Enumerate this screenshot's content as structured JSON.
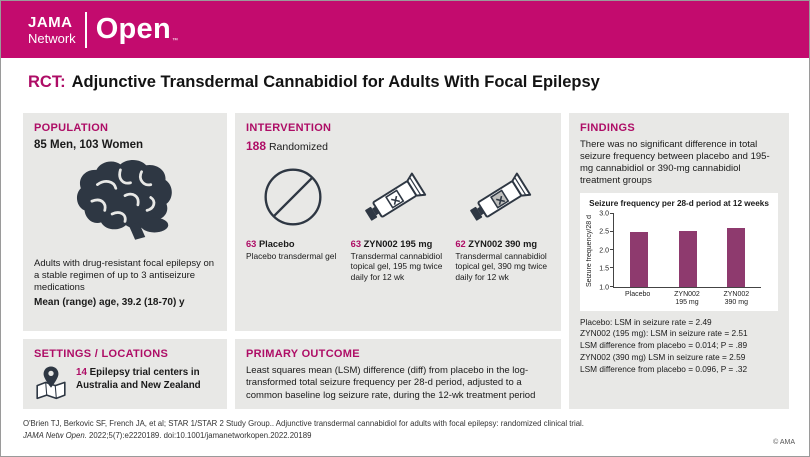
{
  "colors": {
    "brand_magenta": "#C30B6E",
    "accent": "#AE0D66",
    "bar": "#8E3A6E",
    "icon_dark": "#2E3743",
    "panel_bg": "#E8E8E6"
  },
  "header": {
    "brand_jama": "JAMA",
    "brand_network": "Network",
    "brand_open": "Open",
    "trademark": "™"
  },
  "title": {
    "prefix": "RCT:",
    "text": "Adjunctive Transdermal Cannabidiol for Adults With Focal Epilepsy"
  },
  "population": {
    "heading": "POPULATION",
    "line1": "85 Men, 103 Women",
    "desc": "Adults with drug-resistant focal epilepsy on a stable regimen of up to 3 antiseizure medications",
    "age": "Mean (range) age, 39.2 (18-70) y",
    "icon": "brain-icon"
  },
  "settings": {
    "heading": "SETTINGS / LOCATIONS",
    "count": "14",
    "text": "Epilepsy trial centers in Australia and New Zealand",
    "icon": "location-pin-icon"
  },
  "intervention": {
    "heading": "INTERVENTION",
    "randomized_count": "188",
    "randomized_label": "Randomized",
    "arms": [
      {
        "count": "63",
        "name": "Placebo",
        "desc": "Placebo transdermal gel",
        "icon": "prohibition-circle-icon"
      },
      {
        "count": "63",
        "name": "ZYN002 195 mg",
        "desc": "Transdermal cannabidiol topical gel, 195 mg twice daily for 12 wk",
        "icon": "gel-tube-icon"
      },
      {
        "count": "62",
        "name": "ZYN002 390 mg",
        "desc": "Transdermal cannabidiol topical gel, 390 mg twice daily for 12 wk",
        "icon": "gel-tube-shaded-icon"
      }
    ]
  },
  "primary_outcome": {
    "heading": "PRIMARY OUTCOME",
    "text": "Least squares mean (LSM) difference (diff) from placebo in the log-transformed total seizure frequency per 28-d period, adjusted to a common baseline log seizure rate, during the 12-wk treatment period"
  },
  "findings": {
    "heading": "FINDINGS",
    "summary": "There was no significant difference in total seizure frequency between placebo and 195-mg cannabidiol or 390-mg cannabidiol treatment groups",
    "notes": [
      "Placebo: LSM in seizure rate = 2.49",
      "ZYN002 (195 mg): LSM in seizure rate = 2.51",
      "LSM difference from placebo = 0.014; P = .89",
      "ZYN002 (390 mg) LSM in seizure rate = 2.59",
      "LSM difference from placebo = 0.096, P = .32"
    ]
  },
  "chart_data": {
    "type": "bar",
    "title": "Seizure frequency per 28-d period at 12 weeks",
    "categories": [
      "Placebo",
      "ZYN002\n195 mg",
      "ZYN002\n390 mg"
    ],
    "values": [
      2.49,
      2.51,
      2.59
    ],
    "xlabel": "",
    "ylabel": "Seizure frequency/28 d",
    "ylim": [
      1.0,
      3.0
    ],
    "yticks": [
      1.0,
      1.5,
      2.0,
      2.5,
      3.0
    ],
    "grid": false,
    "legend": false,
    "bar_color": "#8E3A6E"
  },
  "footer": {
    "line1": "O'Brien TJ, Berkovic SF, French JA, et al; STAR 1/STAR 2 Study Group.. Adjunctive transdermal cannabidiol for adults with focal epilepsy: randomized clinical trial.",
    "line2_italic": "JAMA Netw Open.",
    "line2_rest": " 2022;5(7):e2220189. doi:10.1001/jamanetworkopen.2022.20189",
    "copyright": "© AMA"
  }
}
